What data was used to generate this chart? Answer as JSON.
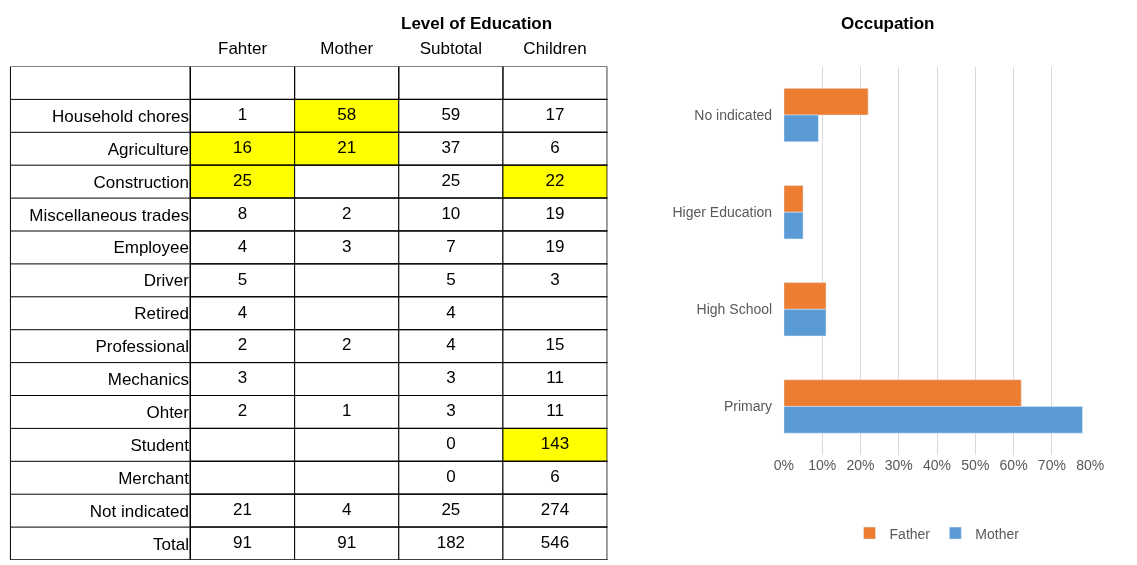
{
  "chart_data": [
    {
      "type": "heatmap",
      "title": "Level of Education",
      "categories": [
        "Fahter",
        "Mother",
        "Subtotal",
        "Children"
      ],
      "y_categories": [
        "Household chores",
        "Agriculture",
        "Construction",
        "Miscellaneous trades",
        "Employee",
        "Driver",
        "Retired",
        "Professional",
        "Mechanics",
        "Ohter",
        "Student",
        "Merchant",
        "Not indicated",
        "Total"
      ],
      "cells": [
        [
          1,
          58,
          59,
          17
        ],
        [
          16,
          21,
          37,
          6
        ],
        [
          25,
          null,
          25,
          22
        ],
        [
          8,
          2,
          10,
          19
        ],
        [
          4,
          3,
          7,
          19
        ],
        [
          5,
          null,
          5,
          3
        ],
        [
          4,
          null,
          4,
          null
        ],
        [
          2,
          2,
          4,
          15
        ],
        [
          3,
          null,
          3,
          11
        ],
        [
          2,
          1,
          3,
          11
        ],
        [
          null,
          null,
          0,
          143
        ],
        [
          null,
          null,
          0,
          6
        ],
        [
          21,
          4,
          25,
          274
        ],
        [
          91,
          91,
          182,
          546
        ]
      ],
      "cell_labels": [
        [
          "1",
          "58",
          "59",
          "17"
        ],
        [
          "16",
          "21",
          "37",
          "6"
        ],
        [
          "25",
          null,
          "25",
          "22"
        ],
        [
          "8",
          "2",
          "10",
          "19"
        ],
        [
          "4",
          "3",
          "7",
          "19"
        ],
        [
          "5",
          null,
          "5",
          "3"
        ],
        [
          "4",
          null,
          "4",
          null
        ],
        [
          "2",
          "2",
          "4",
          "15"
        ],
        [
          "3",
          null,
          "3",
          "11"
        ],
        [
          "2",
          "1",
          "3",
          "11"
        ],
        [
          null,
          null,
          "0",
          "143"
        ],
        [
          null,
          null,
          "0",
          "6"
        ],
        [
          "21",
          "4",
          "25",
          "274"
        ],
        [
          "91",
          "91",
          "182",
          "546"
        ]
      ],
      "colors": [
        [
          "#ffffff",
          "#ffff00",
          "#ffffff",
          "#ffffff"
        ],
        [
          "#ffff00",
          "#ffff00",
          "#ffffff",
          "#ffffff"
        ],
        [
          "#ffff00",
          "#ffffff",
          "#ffffff",
          "#ffff00"
        ],
        [
          "#ffffff",
          "#ffffff",
          "#ffffff",
          "#ffffff"
        ],
        [
          "#ffffff",
          "#ffffff",
          "#ffffff",
          "#ffffff"
        ],
        [
          "#ffffff",
          "#ffffff",
          "#ffffff",
          "#ffffff"
        ],
        [
          "#ffffff",
          "#ffffff",
          "#ffffff",
          "#ffffff"
        ],
        [
          "#ffffff",
          "#ffffff",
          "#ffffff",
          "#ffffff"
        ],
        [
          "#ffffff",
          "#ffffff",
          "#ffffff",
          "#ffffff"
        ],
        [
          "#ffffff",
          "#ffffff",
          "#ffffff",
          "#ffffff"
        ],
        [
          "#ffffff",
          "#ffffff",
          "#ffffff",
          "#ffff00"
        ],
        [
          "#ffffff",
          "#ffffff",
          "#ffffff",
          "#ffffff"
        ],
        [
          "#ffffff",
          "#ffffff",
          "#ffffff",
          "#ffffff"
        ],
        [
          "#ffffff",
          "#ffffff",
          "#ffffff",
          "#ffffff"
        ]
      ]
    },
    {
      "type": "bar",
      "orientation": "horizontal",
      "title": "Occupation",
      "categories": [
        "No indicated",
        "Higer Education",
        "High School",
        "Primary"
      ],
      "series": [
        {
          "name": "Father",
          "color": "#ed7d31",
          "values": [
            22,
            5,
            11,
            62
          ]
        },
        {
          "name": "Mother",
          "color": "#5b9bd5",
          "values": [
            9,
            5,
            11,
            78
          ]
        }
      ],
      "xlim": [
        0,
        80
      ],
      "xticks": [
        {
          "value": 0,
          "label": "0%"
        },
        {
          "value": 10,
          "label": "10%"
        },
        {
          "value": 20,
          "label": "20%"
        },
        {
          "value": 30,
          "label": "30%"
        },
        {
          "value": 40,
          "label": "40%"
        },
        {
          "value": 50,
          "label": "50%"
        },
        {
          "value": 60,
          "label": "60%"
        },
        {
          "value": 70,
          "label": "70%"
        },
        {
          "value": 80,
          "label": "80%"
        }
      ],
      "grid": "x",
      "legend": "bottom"
    }
  ]
}
